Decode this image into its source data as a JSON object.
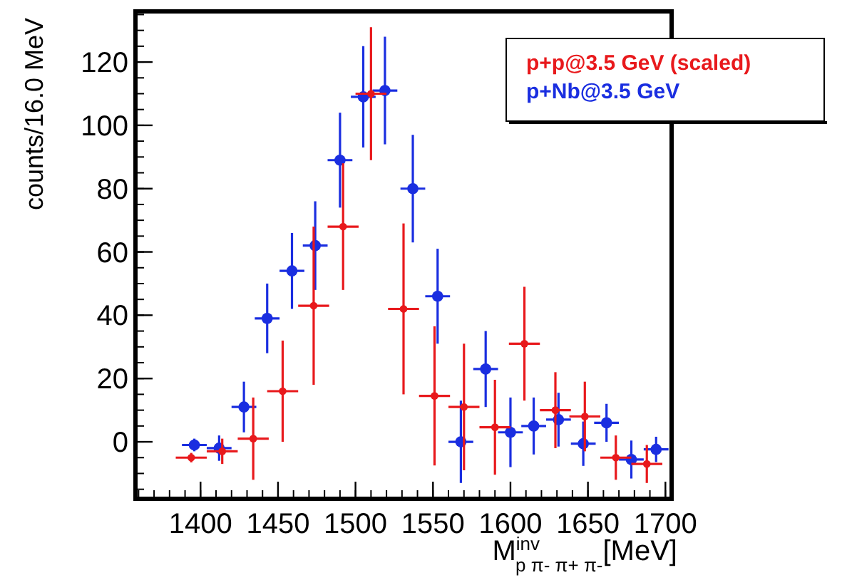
{
  "chart_data": {
    "type": "scatter",
    "xlabel": "M$^{inv}$$_{p π- π+ π-}$[MeV]",
    "ylabel": "counts/16.0 MeV",
    "xlim": [
      1358,
      1704
    ],
    "ylim": [
      -18,
      136
    ],
    "xticks": [
      1400,
      1450,
      1500,
      1550,
      1600,
      1650,
      1700
    ],
    "yticks": [
      0,
      20,
      40,
      60,
      80,
      100,
      120
    ],
    "grid": false,
    "legend": "top right",
    "marker": "circle",
    "series": [
      {
        "name": "p+p@3.5 GeV (scaled)",
        "color": "#e8191c",
        "x": [
          1394,
          1414,
          1434,
          1453,
          1473,
          1492,
          1510,
          1531,
          1551,
          1570,
          1590,
          1609,
          1629,
          1648,
          1668,
          1688
        ],
        "values": [
          -5,
          -3,
          1,
          16,
          43,
          68,
          110,
          42,
          14.5,
          11,
          4.6,
          31,
          10,
          8,
          -5,
          -7
        ],
        "errors": [
          1.5,
          4,
          13,
          16,
          25,
          20,
          21,
          27,
          22,
          20,
          15,
          18,
          12,
          11,
          7,
          6
        ],
        "xerrors": [
          10,
          10,
          10,
          10,
          10,
          10,
          10,
          10,
          10,
          10,
          10,
          10,
          10,
          10,
          10,
          10
        ]
      },
      {
        "name": "p+Nb@3.5 GeV",
        "color": "#1a2ee0",
        "x": [
          1396,
          1412,
          1428,
          1443,
          1459,
          1474,
          1490,
          1505,
          1519,
          1537,
          1553,
          1568,
          1584,
          1600,
          1615,
          1631,
          1647,
          1662,
          1678,
          1694
        ],
        "values": [
          -1,
          -2,
          11,
          39,
          54,
          62,
          89,
          109,
          111,
          80,
          46,
          0,
          23,
          3,
          5,
          7,
          -0.6,
          6,
          -5.6,
          -2.4
        ],
        "errors": [
          2,
          4,
          8,
          11,
          12,
          14,
          15,
          16,
          17,
          17,
          15,
          13,
          12,
          11,
          9,
          8.5,
          7,
          6,
          6,
          4
        ],
        "xerrors": [
          8,
          8,
          8,
          8,
          8,
          8,
          8,
          8,
          8,
          8,
          8,
          8,
          8,
          8,
          8,
          8,
          8,
          8,
          8,
          8
        ]
      }
    ]
  }
}
